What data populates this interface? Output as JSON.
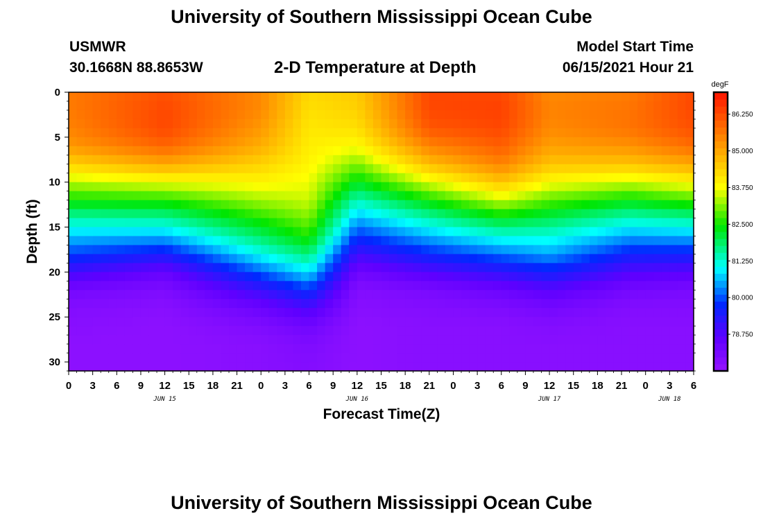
{
  "header": {
    "title": "University of Southern Mississippi Ocean Cube",
    "station": "USMWR",
    "coords": "30.1668N  88.8653W",
    "subtitle": "2-D Temperature at Depth",
    "model_start_label": "Model Start Time",
    "model_start_value": "06/15/2021 Hour 21"
  },
  "footer": {
    "title": "University of Southern Mississippi Ocean Cube"
  },
  "chart_data": {
    "type": "heatmap",
    "title": "2-D Temperature at Depth",
    "xlabel": "Forecast Time(Z)",
    "ylabel": "Depth (ft)",
    "x_unit": "hours since 2021-06-15 00Z",
    "xlim": [
      0,
      78
    ],
    "ylim": [
      0,
      31
    ],
    "y_inverted": true,
    "x_ticks": [
      0,
      3,
      6,
      9,
      12,
      15,
      18,
      21,
      24,
      27,
      30,
      33,
      36,
      39,
      42,
      45,
      48,
      51,
      54,
      57,
      60,
      63,
      66,
      69,
      72,
      75,
      78
    ],
    "x_tick_labels": [
      "0",
      "3",
      "6",
      "9",
      "12",
      "15",
      "18",
      "21",
      "0",
      "3",
      "6",
      "9",
      "12",
      "15",
      "18",
      "21",
      "0",
      "3",
      "6",
      "9",
      "12",
      "15",
      "18",
      "21",
      "0",
      "3",
      "6"
    ],
    "date_labels": [
      {
        "x": 12,
        "label": "JUN 15"
      },
      {
        "x": 36,
        "label": "JUN 16"
      },
      {
        "x": 60,
        "label": "JUN 17"
      },
      {
        "x": 75,
        "label": "JUN 18"
      }
    ],
    "y_ticks": [
      0,
      5,
      10,
      15,
      20,
      25,
      30
    ],
    "y_tick_labels": [
      "0",
      "5",
      "10",
      "15",
      "20",
      "25",
      "30"
    ],
    "colorbar": {
      "label": "degF",
      "range": [
        77.5,
        87.0
      ],
      "ticks": [
        86.25,
        85.0,
        83.75,
        82.5,
        81.25,
        80.0,
        78.75
      ],
      "tick_labels": [
        "86.250",
        "85.000",
        "83.750",
        "82.500",
        "81.250",
        "80.000",
        "78.750"
      ]
    },
    "units": "degF",
    "profiles": {
      "depth_ft": [
        0,
        2,
        4,
        6,
        8,
        10,
        12,
        14,
        16,
        18,
        20,
        22,
        24,
        26,
        28,
        30,
        31
      ],
      "series": [
        {
          "time": 0,
          "values": [
            85.6,
            85.6,
            85.5,
            85.2,
            84.4,
            83.4,
            82.5,
            81.5,
            80.7,
            79.9,
            79.0,
            78.2,
            77.9,
            77.8,
            77.7,
            77.7,
            77.7
          ]
        },
        {
          "time": 12,
          "values": [
            86.2,
            86.3,
            86.3,
            85.9,
            85.0,
            83.7,
            82.6,
            81.6,
            80.6,
            79.5,
            78.5,
            78.0,
            77.8,
            77.7,
            77.7,
            77.7,
            77.7
          ]
        },
        {
          "time": 24,
          "values": [
            85.4,
            85.4,
            85.2,
            84.9,
            84.4,
            83.9,
            83.3,
            82.6,
            81.9,
            81.1,
            80.1,
            79.1,
            78.4,
            78.0,
            77.8,
            77.8,
            77.8
          ]
        },
        {
          "time": 30,
          "values": [
            84.3,
            84.2,
            84.1,
            84.0,
            83.9,
            83.7,
            83.5,
            83.1,
            82.6,
            81.8,
            80.9,
            79.8,
            78.9,
            78.3,
            78.0,
            77.9,
            77.9
          ]
        },
        {
          "time": 36,
          "values": [
            84.5,
            84.4,
            84.2,
            83.8,
            83.1,
            82.3,
            81.4,
            80.6,
            79.8,
            79.0,
            78.3,
            77.9,
            77.8,
            77.7,
            77.7,
            77.7,
            77.7
          ]
        },
        {
          "time": 45,
          "values": [
            86.3,
            86.3,
            86.1,
            85.5,
            84.7,
            83.6,
            82.5,
            81.5,
            80.6,
            79.7,
            78.8,
            78.1,
            77.9,
            77.8,
            77.8,
            77.8,
            77.8
          ]
        },
        {
          "time": 54,
          "values": [
            86.3,
            86.4,
            86.3,
            86.0,
            85.5,
            84.6,
            83.5,
            82.3,
            81.2,
            80.2,
            79.2,
            78.4,
            78.0,
            77.8,
            77.8,
            77.8,
            77.8
          ]
        },
        {
          "time": 60,
          "values": [
            85.4,
            85.5,
            85.4,
            85.1,
            84.6,
            83.8,
            82.9,
            82.0,
            81.2,
            80.5,
            79.6,
            78.7,
            78.2,
            77.9,
            77.8,
            77.8,
            77.8
          ]
        },
        {
          "time": 70,
          "values": [
            85.6,
            85.7,
            85.7,
            85.3,
            84.6,
            83.5,
            82.4,
            81.4,
            80.5,
            79.6,
            78.8,
            78.2,
            77.9,
            77.8,
            77.8,
            77.8,
            77.8
          ]
        },
        {
          "time": 78,
          "values": [
            86.3,
            86.3,
            86.2,
            85.8,
            85.0,
            83.9,
            82.8,
            81.6,
            80.6,
            79.6,
            78.7,
            78.1,
            77.9,
            77.8,
            77.8,
            77.8,
            77.8
          ]
        }
      ]
    },
    "colors": {
      "background": "#ffffff",
      "frame": "#000000"
    }
  }
}
